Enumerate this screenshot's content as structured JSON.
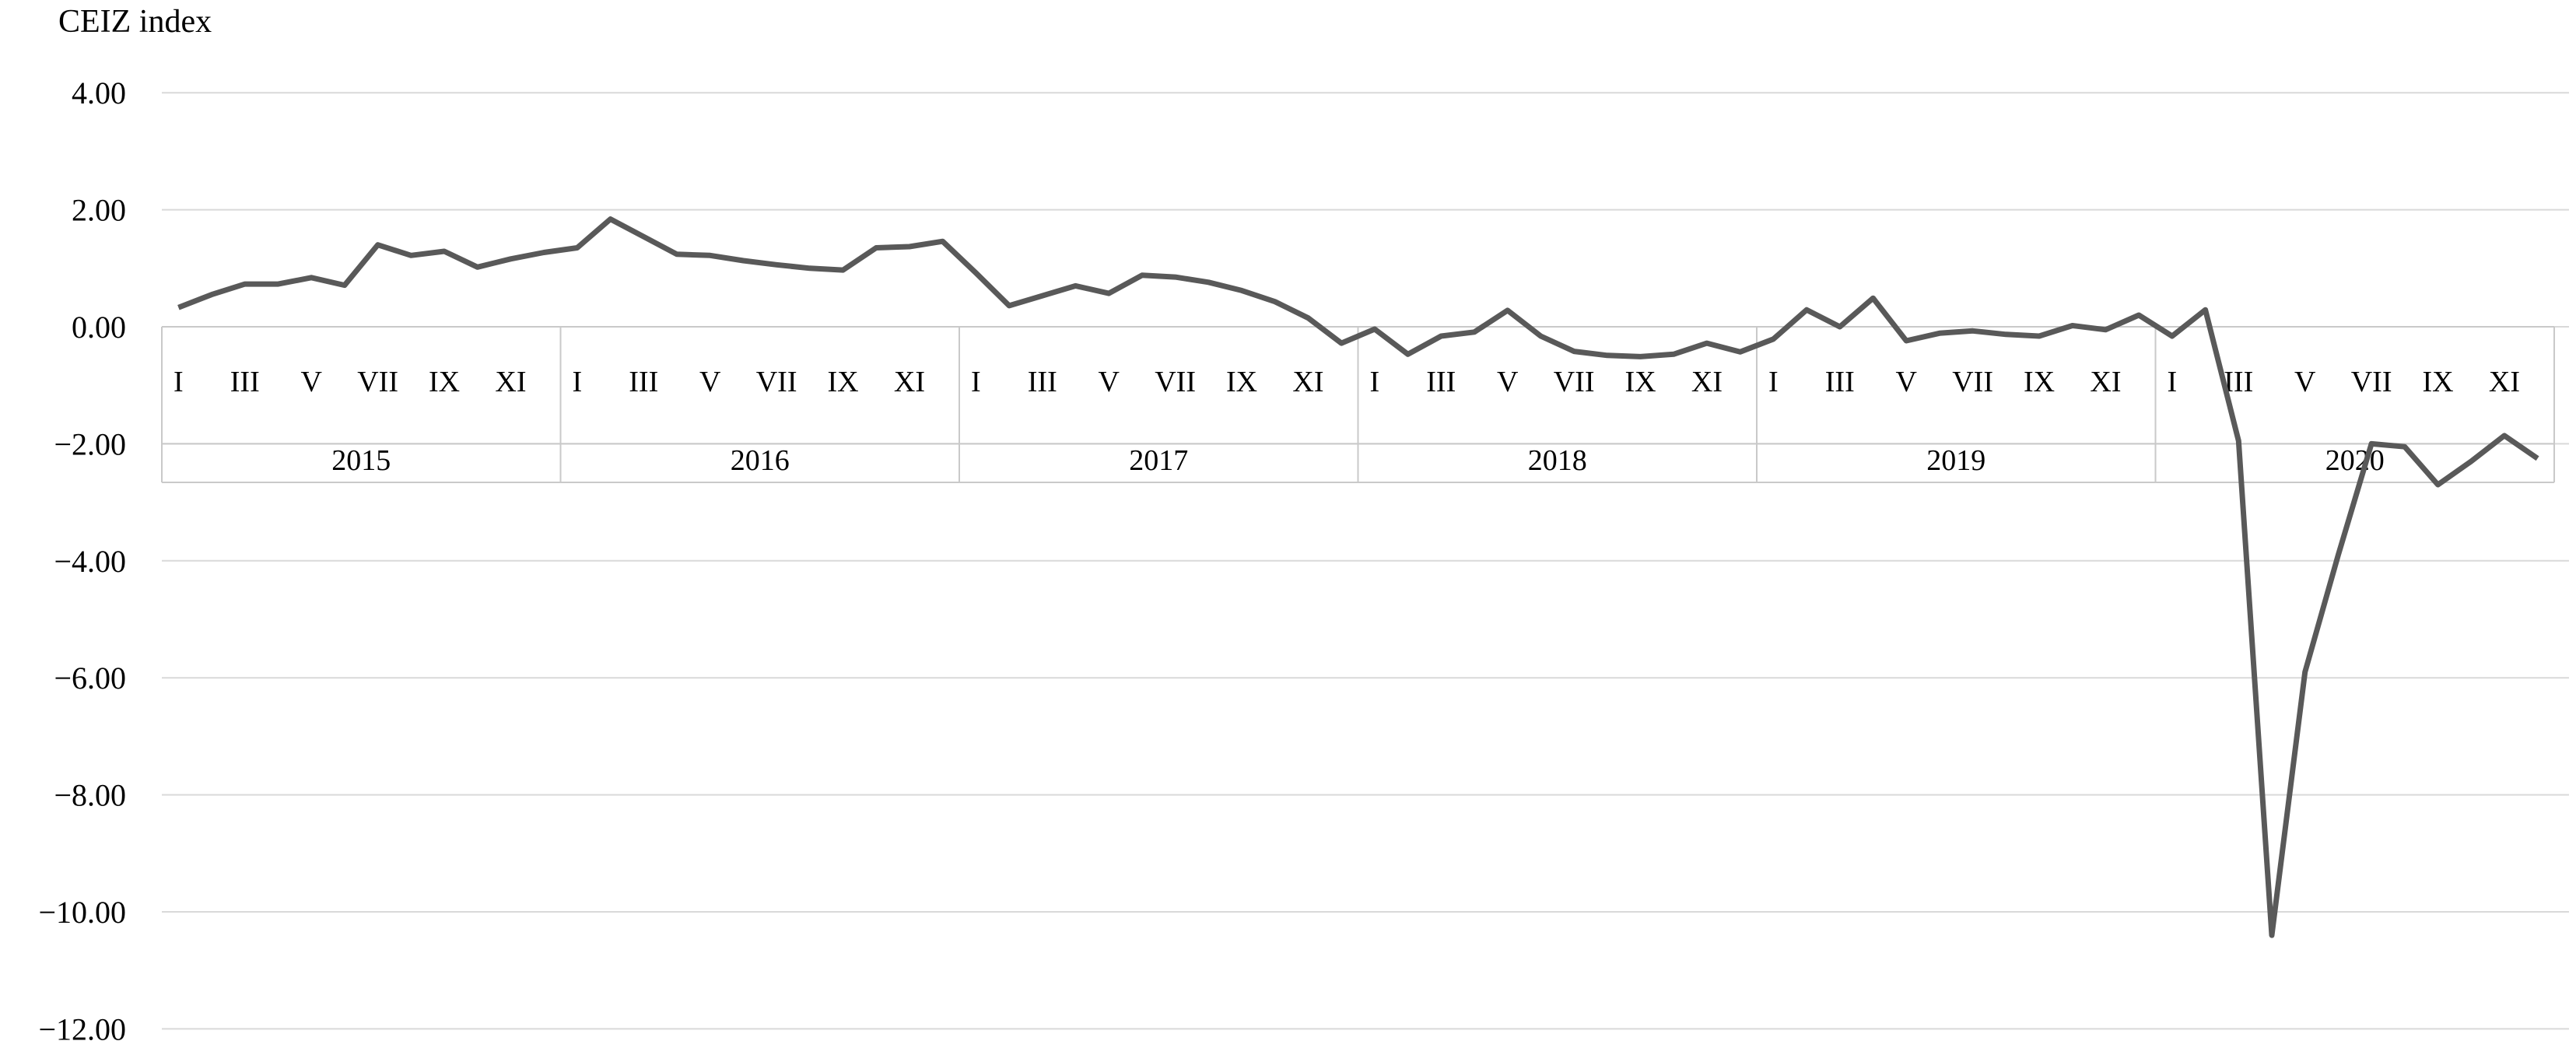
{
  "chart_data": {
    "type": "line",
    "title": "CEIZ index",
    "xlabel": "",
    "ylabel": "",
    "ylim": [
      -12,
      4
    ],
    "grid": true,
    "legend": "none",
    "y_ticks": [
      {
        "value": 4,
        "label": "4.00"
      },
      {
        "value": 2,
        "label": "2.00"
      },
      {
        "value": 0,
        "label": "0.00"
      },
      {
        "value": -2,
        "label": "−2.00"
      },
      {
        "value": -4,
        "label": "−4.00"
      },
      {
        "value": -6,
        "label": "−6.00"
      },
      {
        "value": -8,
        "label": "−8.00"
      },
      {
        "value": -10,
        "label": "−10.00"
      },
      {
        "value": -12,
        "label": "−12.00"
      }
    ],
    "month_tick_labels": [
      "I",
      "III",
      "V",
      "VII",
      "IX",
      "XI"
    ],
    "month_tick_indices": [
      0,
      2,
      4,
      6,
      8,
      10
    ],
    "years": [
      "2015",
      "2016",
      "2017",
      "2018",
      "2019",
      "2020"
    ],
    "months_per_year": 12,
    "series": [
      {
        "name": "CEIZ index",
        "values": [
          0.33,
          0.55,
          0.73,
          0.73,
          0.84,
          0.71,
          1.4,
          1.22,
          1.29,
          1.02,
          1.16,
          1.27,
          1.35,
          1.84,
          1.54,
          1.24,
          1.22,
          1.13,
          1.06,
          1.0,
          0.97,
          1.35,
          1.37,
          1.46,
          0.92,
          0.36,
          0.53,
          0.7,
          0.57,
          0.88,
          0.85,
          0.76,
          0.62,
          0.43,
          0.15,
          -0.28,
          -0.04,
          -0.47,
          -0.16,
          -0.09,
          0.28,
          -0.16,
          -0.42,
          -0.49,
          -0.51,
          -0.47,
          -0.28,
          -0.43,
          -0.21,
          0.29,
          0.0,
          0.49,
          -0.24,
          -0.11,
          -0.07,
          -0.13,
          -0.16,
          0.02,
          -0.05,
          0.2,
          -0.16,
          0.29,
          -1.95,
          -10.4,
          -5.9,
          -3.9,
          -2.0,
          -2.05,
          -2.7,
          -2.3,
          -1.86,
          -2.25
        ]
      }
    ],
    "colors": {
      "line": "#595959",
      "gridline": "#D9D9D9",
      "axis_box": "#C9C9C9",
      "text": "#000000",
      "background": "#FFFFFF"
    }
  }
}
